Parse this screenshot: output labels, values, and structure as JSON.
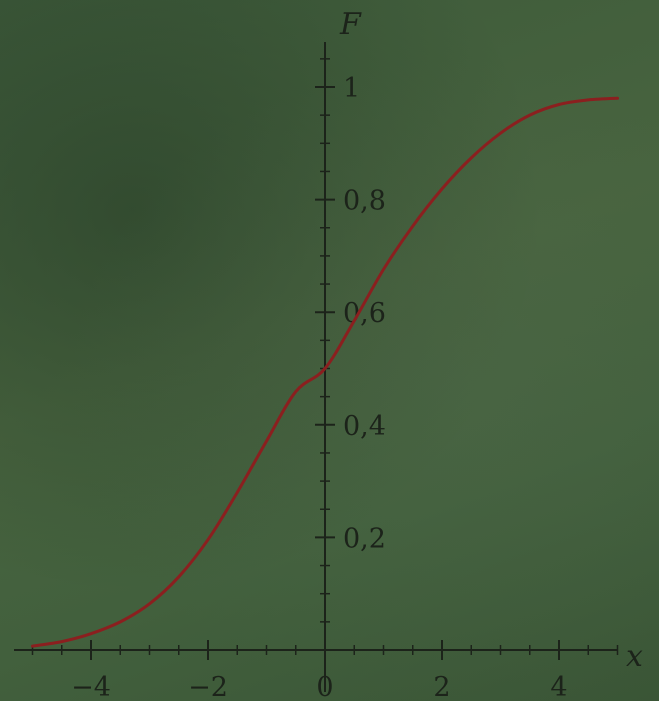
{
  "chart_data": {
    "type": "line",
    "title": "",
    "xlabel": "x",
    "ylabel": "F",
    "xlim": [
      -5,
      5
    ],
    "ylim": [
      0,
      1
    ],
    "x_ticks": [
      -4,
      -2,
      0,
      2,
      4
    ],
    "x_tick_labels": [
      "−4",
      "−2",
      "0",
      "2",
      "4"
    ],
    "y_ticks": [
      0.2,
      0.4,
      0.6,
      0.8,
      1
    ],
    "y_tick_labels": [
      "0,2",
      "0,4",
      "0,6",
      "0,8",
      "1"
    ],
    "grid": false,
    "series": [
      {
        "color": "#8b1f1f",
        "x": [
          -5,
          -4.5,
          -4,
          -3.5,
          -3,
          -2.5,
          -2,
          -1.5,
          -1,
          -0.5,
          0,
          0.5,
          1,
          1.5,
          2,
          2.5,
          3,
          3.5,
          4,
          4.5,
          5
        ],
        "y": [
          0.007,
          0.015,
          0.029,
          0.05,
          0.082,
          0.13,
          0.196,
          0.28,
          0.371,
          0.459,
          0.5,
          0.585,
          0.676,
          0.753,
          0.819,
          0.874,
          0.918,
          0.95,
          0.969,
          0.977,
          0.98
        ]
      }
    ]
  },
  "colors": {
    "background": "#42603d",
    "axis": "#1c231a",
    "curve": "#8b1f1f"
  }
}
